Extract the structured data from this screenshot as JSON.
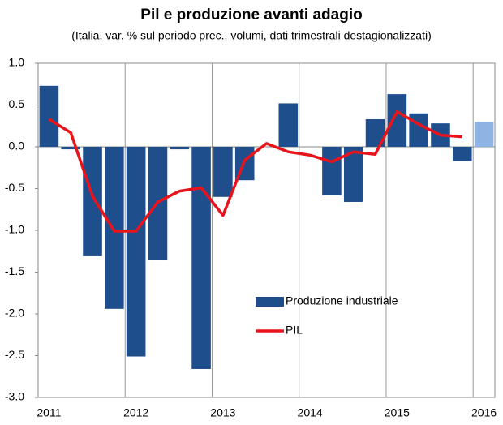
{
  "chart_data": {
    "type": "bar-line",
    "title": "Pil e produzione avanti adagio",
    "subtitle": "(Italia, var. % sul periodo prec., volumi, dati trimestrali destagionalizzati)",
    "categories": [
      "2011",
      null,
      null,
      null,
      "2012",
      null,
      null,
      null,
      "2013",
      null,
      null,
      null,
      "2014",
      null,
      null,
      null,
      "2015",
      null,
      null,
      null,
      "2016"
    ],
    "series": [
      {
        "name": "Produzione industriale",
        "kind": "bar",
        "color": "#1f4e8c",
        "colors": [
          "#1f4e8c",
          "#1f4e8c",
          "#1f4e8c",
          "#1f4e8c",
          "#1f4e8c",
          "#1f4e8c",
          "#1f4e8c",
          "#1f4e8c",
          "#1f4e8c",
          "#1f4e8c",
          "#1f4e8c",
          "#1f4e8c",
          "#1f4e8c",
          "#1f4e8c",
          "#1f4e8c",
          "#1f4e8c",
          "#1f4e8c",
          "#1f4e8c",
          "#1f4e8c",
          "#1f4e8c",
          "#8db4e2"
        ],
        "values": [
          0.73,
          -0.03,
          -1.31,
          -1.94,
          -2.51,
          -1.35,
          -0.03,
          -2.66,
          -0.6,
          -0.4,
          0,
          0.52,
          0,
          -0.58,
          -0.66,
          0.33,
          0.63,
          0.4,
          0.28,
          -0.17,
          0.3
        ]
      },
      {
        "name": "PIL",
        "kind": "line",
        "color": "#e8141c",
        "values": [
          0.33,
          0.17,
          -0.59,
          -1.01,
          -1.01,
          -0.66,
          -0.53,
          -0.49,
          -0.82,
          -0.16,
          0.04,
          -0.06,
          -0.1,
          -0.18,
          -0.06,
          -0.09,
          0.42,
          0.27,
          0.14,
          0.12,
          null
        ]
      }
    ],
    "ylim": [
      -3.0,
      1.0
    ],
    "yticks": [
      {
        "value": 1.0,
        "label": "1.0"
      },
      {
        "value": 0.5,
        "label": "0.5"
      },
      {
        "value": 0.0,
        "label": "0.0"
      },
      {
        "value": -0.5,
        "label": "-0.5"
      },
      {
        "value": -1.0,
        "label": "-1.0"
      },
      {
        "value": -1.5,
        "label": "-1.5"
      },
      {
        "value": -2.0,
        "label": "-2.0"
      },
      {
        "value": -2.5,
        "label": "-2.5"
      },
      {
        "value": -3.0,
        "label": "-3.0"
      }
    ],
    "grid": true
  }
}
